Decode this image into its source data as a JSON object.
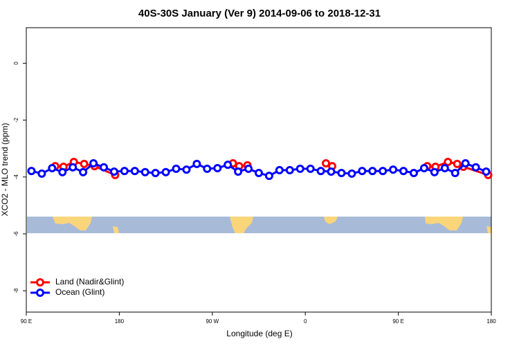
{
  "chart_data": {
    "type": "line",
    "title": "40S-30S January (Ver 9)   2014-09-06 to 2018-12-31",
    "x_label": "Longitude (deg E)",
    "y_label": "XCO2 - MLO trend (ppm)",
    "xlim": [
      90,
      540
    ],
    "xticks": [
      {
        "value": 90,
        "label": "90 E"
      },
      180,
      {
        "value": 270,
        "label": "90 W"
      },
      {
        "value": 360,
        "label": "0"
      },
      {
        "value": 450,
        "label": "90 E"
      },
      {
        "value": 540,
        "label": "180"
      }
    ],
    "ylim": [
      -8.75,
      1.25
    ],
    "yticks": [
      0,
      -2,
      -4,
      -6,
      -8
    ],
    "legend": "lower left",
    "series": [
      {
        "name": "Land (Nadir&Glint)",
        "color": "#ff0000",
        "x": [
          118,
          126,
          136,
          146,
          156,
          176,
          null,
          290,
          296,
          304,
          null,
          380,
          386,
          null,
          478,
          486,
          498,
          507,
          513,
          537
        ],
        "values": [
          -3.62,
          -3.64,
          -3.47,
          -3.54,
          -3.62,
          -3.93,
          null,
          -3.52,
          -3.62,
          -3.59,
          null,
          -3.52,
          -3.62,
          null,
          -3.62,
          -3.64,
          -3.47,
          -3.54,
          -3.64,
          -3.93
        ]
      },
      {
        "name": "Ocean (Glint)",
        "color": "#0000ff",
        "x": [
          95,
          105,
          115,
          125,
          135,
          145,
          155,
          165,
          175,
          185,
          195,
          205,
          215,
          225,
          235,
          245,
          255,
          265,
          275,
          285,
          295,
          305,
          315,
          325,
          335,
          345,
          355,
          365,
          375,
          385,
          395,
          405,
          415,
          425,
          435,
          445,
          455,
          465,
          475,
          485,
          495,
          505,
          515,
          525,
          535
        ],
        "values": [
          -3.79,
          -3.88,
          -3.69,
          -3.83,
          -3.66,
          -3.83,
          -3.52,
          -3.66,
          -3.81,
          -3.79,
          -3.79,
          -3.83,
          -3.86,
          -3.83,
          -3.71,
          -3.74,
          -3.54,
          -3.71,
          -3.69,
          -3.57,
          -3.81,
          -3.71,
          -3.86,
          -3.96,
          -3.76,
          -3.76,
          -3.71,
          -3.71,
          -3.79,
          -3.81,
          -3.86,
          -3.88,
          -3.79,
          -3.79,
          -3.79,
          -3.74,
          -3.79,
          -3.86,
          -3.69,
          -3.83,
          -3.69,
          -3.86,
          -3.52,
          -3.66,
          -3.81
        ]
      }
    ]
  }
}
